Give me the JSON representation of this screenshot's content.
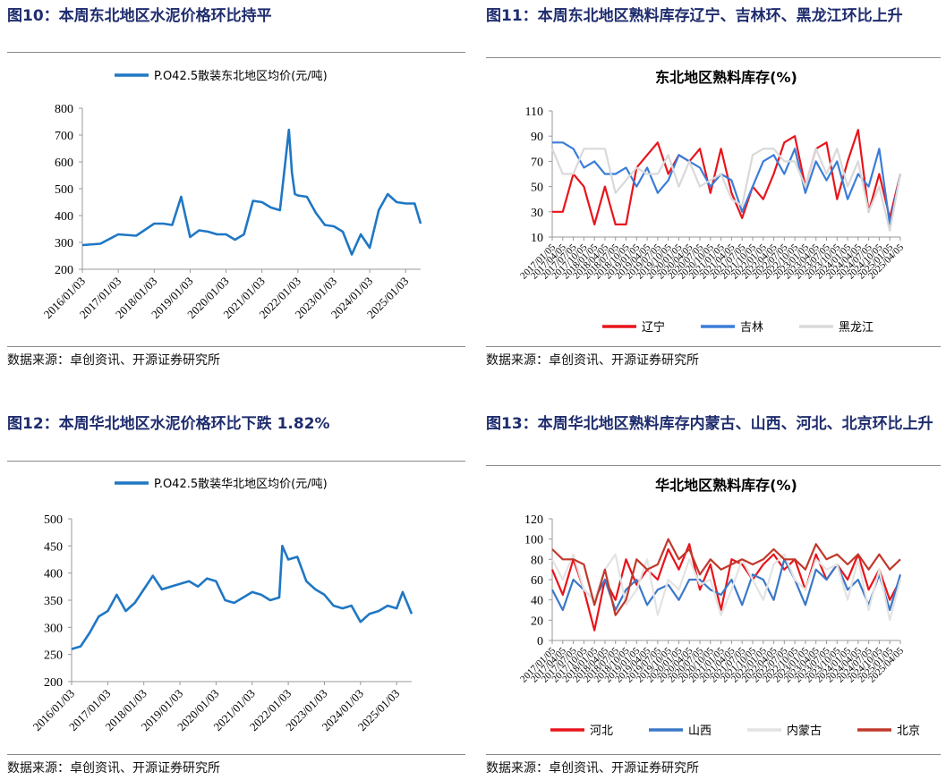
{
  "colors": {
    "title": "#1f2d6e",
    "blue": "#1f77c4",
    "red": "#e8141b",
    "grey": "#d9d9d9",
    "darkred": "#c0392b"
  },
  "panels": [
    {
      "title": "图10：本周东北地区水泥价格环比持平",
      "source": "数据来源：卓创资讯、开源证券研究所",
      "chart_data": {
        "type": "line",
        "title": "",
        "x": [
          "2016/01/03",
          "2016/07/03",
          "2017/01/03",
          "2017/07/03",
          "2018/01/03",
          "2018/04/03",
          "2018/07/03",
          "2018/10/03",
          "2019/01/03",
          "2019/04/03",
          "2019/07/03",
          "2019/10/03",
          "2020/01/03",
          "2020/04/03",
          "2020/07/03",
          "2020/10/03",
          "2021/01/03",
          "2021/04/03",
          "2021/07/03",
          "2021/10/03",
          "2021/11/03",
          "2021/12/03",
          "2022/01/03",
          "2022/04/03",
          "2022/07/03",
          "2022/10/03",
          "2023/01/03",
          "2023/04/03",
          "2023/07/03",
          "2023/10/03",
          "2024/01/03",
          "2024/04/03",
          "2024/07/03",
          "2024/10/03",
          "2025/01/03",
          "2025/04/03",
          "2025/06/03"
        ],
        "xticks": [
          "2016/01/03",
          "2017/01/03",
          "2018/01/03",
          "2019/01/03",
          "2020/01/03",
          "2021/01/03",
          "2022/01/03",
          "2023/01/03",
          "2024/01/03",
          "2025/01/03"
        ],
        "series": [
          {
            "name": "P.O42.5散装东北地区均价(元/吨)",
            "values": [
              290,
              295,
              330,
              325,
              370,
              370,
              365,
              470,
              320,
              345,
              340,
              330,
              330,
              310,
              330,
              455,
              450,
              430,
              420,
              720,
              560,
              480,
              475,
              470,
              410,
              365,
              360,
              340,
              255,
              330,
              280,
              420,
              480,
              450,
              445,
              445,
              370
            ]
          }
        ],
        "ylim": [
          200,
          800
        ],
        "yticks": [
          200,
          300,
          400,
          500,
          600,
          700,
          800
        ],
        "legend": "top"
      }
    },
    {
      "title": "图11：本周东北地区熟料库存辽宁、吉林环、黑龙江环比上升",
      "source": "数据来源：卓创资讯、开源证券研究所",
      "chart_data": {
        "type": "line",
        "title": "东北地区熟料库存(%)",
        "x": [
          "2017/01/05",
          "2017/04/05",
          "2017/07/05",
          "2017/10/05",
          "2018/01/05",
          "2018/04/05",
          "2018/07/05",
          "2018/10/05",
          "2019/01/05",
          "2019/04/05",
          "2019/07/05",
          "2019/10/05",
          "2020/01/05",
          "2020/04/05",
          "2020/07/05",
          "2020/10/05",
          "2021/01/05",
          "2021/04/05",
          "2021/07/05",
          "2021/10/05",
          "2022/01/05",
          "2022/04/05",
          "2022/07/05",
          "2022/10/05",
          "2023/01/05",
          "2023/04/05",
          "2023/07/05",
          "2023/10/05",
          "2024/01/05",
          "2024/04/05",
          "2024/07/05",
          "2024/10/05",
          "2025/01/05",
          "2025/04/05"
        ],
        "xticks": [
          "2017/01/05",
          "2017/04/05",
          "2017/07/05",
          "2017/10/05",
          "2018/01/05",
          "2018/04/05",
          "2018/07/05",
          "2018/10/05",
          "2019/01/05",
          "2019/04/05",
          "2019/07/05",
          "2019/10/05",
          "2020/01/05",
          "2020/04/05",
          "2020/07/05",
          "2020/10/05",
          "2021/01/05",
          "2021/04/05",
          "2021/07/05",
          "2021/10/05",
          "2022/01/05",
          "2022/04/05",
          "2022/07/05",
          "2022/10/05",
          "2023/01/05",
          "2023/04/05",
          "2023/07/05",
          "2023/10/05",
          "2024/01/05",
          "2024/04/05",
          "2024/07/05",
          "2024/10/05",
          "2025/01/05",
          "2025/04/05"
        ],
        "series": [
          {
            "name": "辽宁",
            "values": [
              30,
              30,
              60,
              50,
              20,
              50,
              20,
              20,
              65,
              75,
              85,
              60,
              75,
              70,
              80,
              45,
              80,
              45,
              25,
              50,
              40,
              60,
              85,
              90,
              50,
              80,
              85,
              40,
              70,
              95,
              30,
              60,
              25,
              60
            ]
          },
          {
            "name": "吉林",
            "values": [
              85,
              85,
              80,
              65,
              70,
              60,
              60,
              65,
              50,
              65,
              45,
              55,
              75,
              70,
              65,
              50,
              60,
              55,
              30,
              50,
              70,
              75,
              60,
              80,
              45,
              70,
              55,
              70,
              40,
              60,
              50,
              80,
              20,
              60
            ]
          },
          {
            "name": "黑龙江",
            "values": [
              80,
              60,
              60,
              80,
              80,
              80,
              45,
              55,
              65,
              60,
              60,
              75,
              50,
              70,
              50,
              55,
              60,
              40,
              35,
              75,
              80,
              80,
              70,
              70,
              50,
              80,
              60,
              80,
              50,
              70,
              30,
              50,
              15,
              60
            ]
          }
        ],
        "ylim": [
          10,
          110
        ],
        "yticks": [
          10,
          30,
          50,
          70,
          90,
          110
        ],
        "legend": "bottom"
      }
    },
    {
      "title": "图12：本周华北地区水泥价格环比下跌 1.82%",
      "source": "数据来源：卓创资讯、开源证券研究所",
      "chart_data": {
        "type": "line",
        "title": "",
        "x": [
          "2016/01/03",
          "2016/04/03",
          "2016/07/03",
          "2016/10/03",
          "2017/01/03",
          "2017/04/03",
          "2017/07/03",
          "2017/10/03",
          "2018/01/03",
          "2018/04/03",
          "2018/07/03",
          "2018/10/03",
          "2019/01/03",
          "2019/04/03",
          "2019/07/03",
          "2019/10/03",
          "2020/01/03",
          "2020/04/03",
          "2020/07/03",
          "2020/10/03",
          "2021/01/03",
          "2021/04/03",
          "2021/07/03",
          "2021/10/03",
          "2021/11/03",
          "2022/01/03",
          "2022/04/03",
          "2022/07/03",
          "2022/10/03",
          "2023/01/03",
          "2023/04/03",
          "2023/07/03",
          "2023/10/03",
          "2024/01/03",
          "2024/04/03",
          "2024/07/03",
          "2024/10/03",
          "2025/01/03",
          "2025/03/03",
          "2025/06/03"
        ],
        "xticks": [
          "2016/01/03",
          "2017/01/03",
          "2018/01/03",
          "2019/01/03",
          "2020/01/03",
          "2021/01/03",
          "2022/01/03",
          "2023/01/03",
          "2024/01/03",
          "2025/01/03"
        ],
        "series": [
          {
            "name": "P.O42.5散装华北地区均价(元/吨)",
            "values": [
              260,
              265,
              290,
              320,
              330,
              360,
              330,
              345,
              370,
              395,
              370,
              375,
              380,
              385,
              375,
              390,
              385,
              350,
              345,
              355,
              365,
              360,
              350,
              355,
              450,
              425,
              430,
              385,
              370,
              360,
              340,
              335,
              340,
              310,
              325,
              330,
              340,
              335,
              365,
              325
            ]
          }
        ],
        "ylim": [
          200,
          500
        ],
        "yticks": [
          200,
          250,
          300,
          350,
          400,
          450,
          500
        ],
        "legend": "top"
      }
    },
    {
      "title": "图13：本周华北地区熟料库存内蒙古、山西、河北、北京环比上升",
      "source": "数据来源：卓创资讯、开源证券研究所",
      "chart_data": {
        "type": "line",
        "title": "华北地区熟料库存(%)",
        "x": [
          "2017/01/05",
          "2017/04/05",
          "2017/07/05",
          "2017/10/05",
          "2018/01/05",
          "2018/04/05",
          "2018/07/05",
          "2018/10/05",
          "2019/01/05",
          "2019/04/05",
          "2019/07/05",
          "2019/10/05",
          "2020/01/05",
          "2020/04/05",
          "2020/07/05",
          "2020/10/05",
          "2021/01/05",
          "2021/04/05",
          "2021/07/05",
          "2021/10/05",
          "2022/01/05",
          "2022/04/05",
          "2022/07/05",
          "2022/10/05",
          "2023/01/05",
          "2023/04/05",
          "2023/07/05",
          "2023/10/05",
          "2024/01/05",
          "2024/04/05",
          "2024/07/05",
          "2024/10/05",
          "2025/01/05",
          "2025/04/05"
        ],
        "xticks": [
          "2017/01/05",
          "2017/04/05",
          "2017/07/05",
          "2017/10/05",
          "2018/01/05",
          "2018/04/05",
          "2018/07/05",
          "2018/10/05",
          "2019/01/05",
          "2019/04/05",
          "2019/07/05",
          "2019/10/05",
          "2020/01/05",
          "2020/04/05",
          "2020/07/05",
          "2020/10/05",
          "2021/01/05",
          "2021/04/05",
          "2021/07/05",
          "2021/10/05",
          "2022/01/05",
          "2022/04/05",
          "2022/07/05",
          "2022/10/05",
          "2023/01/05",
          "2023/04/05",
          "2023/07/05",
          "2023/10/05",
          "2024/01/05",
          "2024/04/05",
          "2024/07/05",
          "2024/10/05",
          "2025/01/05",
          "2025/04/05"
        ],
        "series": [
          {
            "name": "河北",
            "values": [
              70,
              45,
              80,
              50,
              10,
              60,
              40,
              80,
              55,
              70,
              60,
              90,
              70,
              95,
              50,
              75,
              30,
              80,
              75,
              60,
              75,
              85,
              70,
              80,
              50,
              85,
              60,
              75,
              60,
              85,
              50,
              70,
              40,
              60
            ]
          },
          {
            "name": "山西",
            "values": [
              50,
              30,
              60,
              50,
              40,
              60,
              30,
              50,
              60,
              35,
              50,
              55,
              40,
              60,
              60,
              50,
              45,
              60,
              35,
              65,
              60,
              40,
              80,
              60,
              35,
              70,
              60,
              75,
              50,
              60,
              35,
              65,
              30,
              65
            ]
          },
          {
            "name": "内蒙古",
            "values": [
              80,
              60,
              85,
              50,
              40,
              70,
              85,
              35,
              50,
              80,
              25,
              60,
              50,
              80,
              55,
              60,
              25,
              50,
              80,
              60,
              40,
              75,
              85,
              60,
              50,
              80,
              70,
              75,
              40,
              80,
              30,
              70,
              20,
              60
            ]
          },
          {
            "name": "北京",
            "values": [
              90,
              80,
              80,
              75,
              35,
              70,
              25,
              40,
              80,
              70,
              75,
              100,
              80,
              90,
              65,
              80,
              70,
              75,
              80,
              75,
              80,
              90,
              80,
              80,
              70,
              95,
              80,
              85,
              75,
              85,
              70,
              85,
              70,
              80
            ]
          }
        ],
        "ylim": [
          0,
          120
        ],
        "yticks": [
          0,
          20,
          40,
          60,
          80,
          100,
          120
        ],
        "legend": "bottom"
      }
    }
  ]
}
